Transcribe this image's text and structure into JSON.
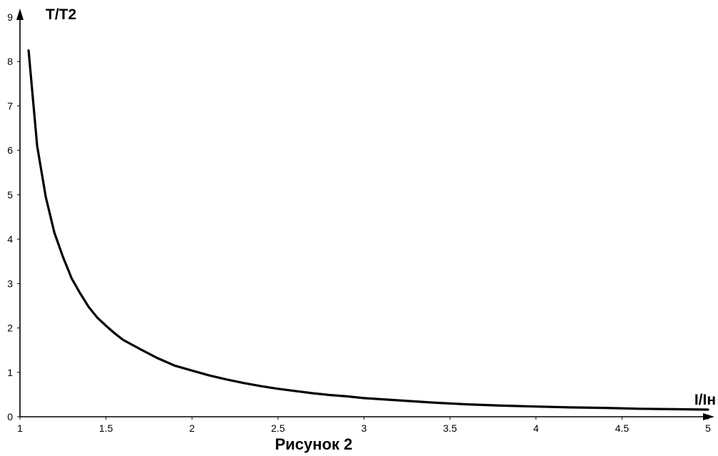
{
  "chart_data": {
    "type": "line",
    "caption": "Рисунок 2",
    "xlabel": "I/Iн",
    "ylabel": "T/T2",
    "xlim": [
      1,
      5
    ],
    "ylim": [
      0,
      9
    ],
    "x_ticks": [
      {
        "value": 1,
        "label": "1"
      },
      {
        "value": 1.5,
        "label": "1.5"
      },
      {
        "value": 2,
        "label": "2"
      },
      {
        "value": 2.5,
        "label": "2.5"
      },
      {
        "value": 3,
        "label": "3"
      },
      {
        "value": 3.5,
        "label": "3.5"
      },
      {
        "value": 4,
        "label": "4"
      },
      {
        "value": 4.5,
        "label": "4.5"
      },
      {
        "value": 5,
        "label": "5"
      }
    ],
    "y_ticks": [
      {
        "value": 0,
        "label": "0"
      },
      {
        "value": 1,
        "label": "1"
      },
      {
        "value": 2,
        "label": "2"
      },
      {
        "value": 3,
        "label": "3"
      },
      {
        "value": 4,
        "label": "4"
      },
      {
        "value": 5,
        "label": "5"
      },
      {
        "value": 6,
        "label": "6"
      },
      {
        "value": 7,
        "label": "7"
      },
      {
        "value": 8,
        "label": "8"
      },
      {
        "value": 9,
        "label": "9"
      }
    ],
    "grid": false,
    "series": [
      {
        "color": "#000000",
        "x": [
          1.05,
          1.1,
          1.15,
          1.2,
          1.25,
          1.3,
          1.35,
          1.4,
          1.45,
          1.5,
          1.55,
          1.6,
          1.7,
          1.8,
          1.9,
          2.0,
          2.1,
          2.2,
          2.3,
          2.4,
          2.5,
          2.6,
          2.7,
          2.8,
          2.9,
          3.0,
          3.2,
          3.4,
          3.6,
          3.8,
          4.0,
          4.2,
          4.4,
          4.6,
          4.8,
          5.0
        ],
        "y": [
          8.25,
          6.1,
          4.95,
          4.15,
          3.6,
          3.12,
          2.78,
          2.47,
          2.23,
          2.05,
          1.88,
          1.73,
          1.52,
          1.32,
          1.15,
          1.04,
          0.93,
          0.84,
          0.76,
          0.69,
          0.63,
          0.58,
          0.53,
          0.49,
          0.46,
          0.42,
          0.37,
          0.32,
          0.28,
          0.25,
          0.23,
          0.21,
          0.2,
          0.18,
          0.17,
          0.16
        ]
      }
    ]
  }
}
